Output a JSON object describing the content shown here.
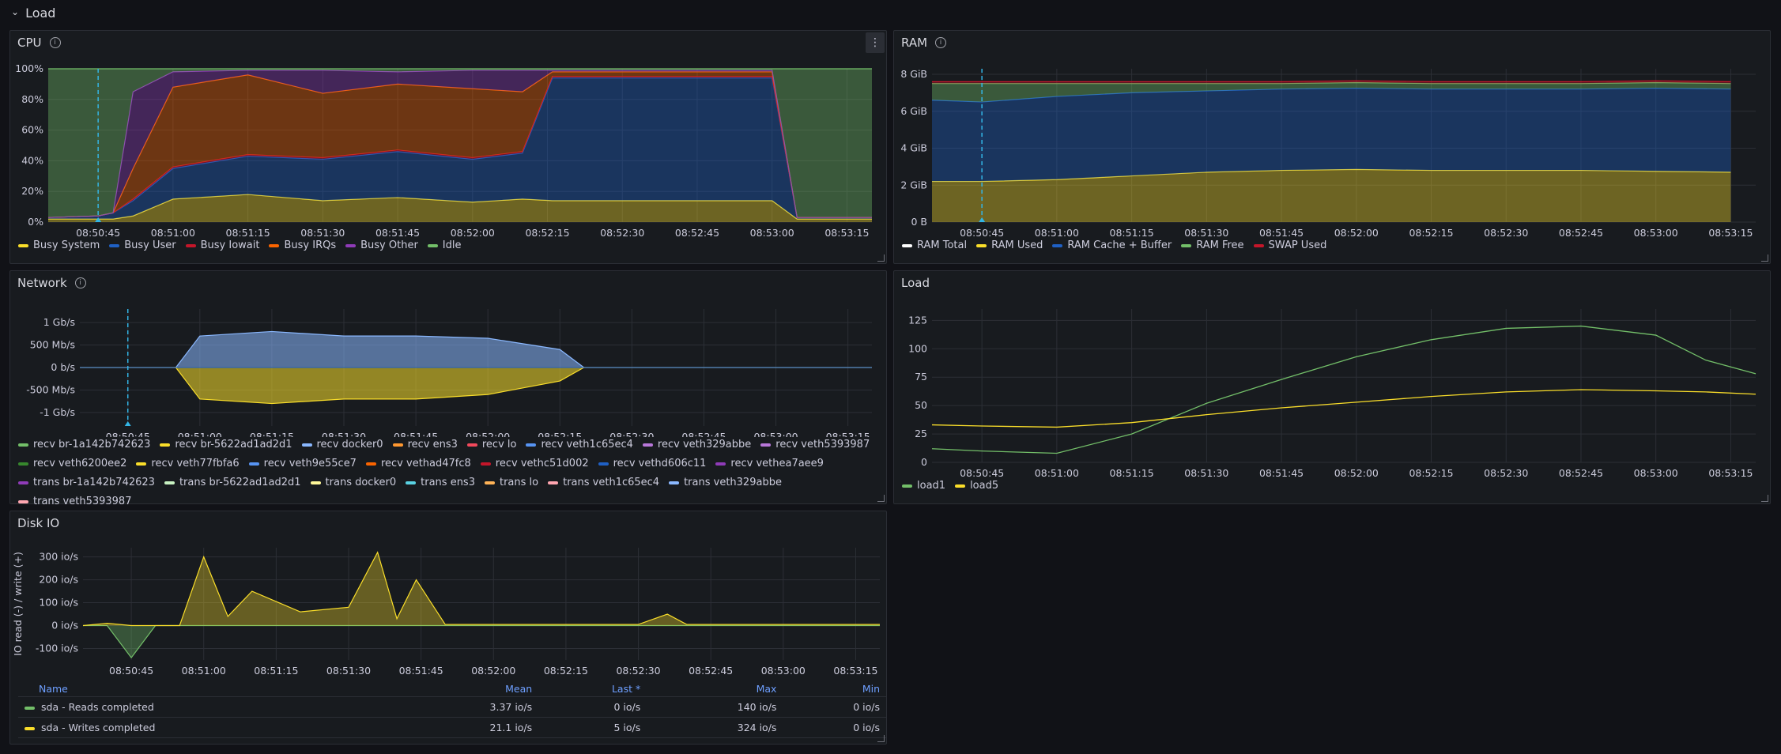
{
  "row": {
    "title": "Load"
  },
  "colors": {
    "green": "#73bf69",
    "yellow": "#fade2a",
    "blue": "#5794f2",
    "red": "#f2495c",
    "darkred": "#c4162a",
    "orange": "#ff9830",
    "darkorange": "#fa6400",
    "purple": "#b877d9",
    "darkpurple": "#8f3bb8",
    "lightblue": "#8ab8ff",
    "darkblue": "#1f60c4",
    "white": "#ffffff",
    "cyan": "#5ad2e3",
    "lightgreen": "#c8f2c2",
    "lightyellow": "#fff899",
    "pink": "#ffa6b0",
    "peach": "#ffb357",
    "lavender": "#ca95e5",
    "darkgreen": "#37872d"
  },
  "panels": {
    "cpu": {
      "title": "CPU",
      "yticks": [
        "100%",
        "80%",
        "60%",
        "40%",
        "20%",
        "0%"
      ],
      "xticks": [
        "08:50:45",
        "08:51:00",
        "08:51:15",
        "08:51:30",
        "08:51:45",
        "08:52:00",
        "08:52:15",
        "08:52:30",
        "08:52:45",
        "08:53:00",
        "08:53:15"
      ],
      "legend": [
        {
          "label": "Busy System",
          "color": "yellow"
        },
        {
          "label": "Busy User",
          "color": "darkblue"
        },
        {
          "label": "Busy Iowait",
          "color": "darkred"
        },
        {
          "label": "Busy IRQs",
          "color": "darkorange"
        },
        {
          "label": "Busy Other",
          "color": "darkpurple"
        },
        {
          "label": "Idle",
          "color": "green"
        }
      ]
    },
    "ram": {
      "title": "RAM",
      "yticks": [
        "8 GiB",
        "6 GiB",
        "4 GiB",
        "2 GiB",
        "0 B"
      ],
      "xticks": [
        "08:50:45",
        "08:51:00",
        "08:51:15",
        "08:51:30",
        "08:51:45",
        "08:52:00",
        "08:52:15",
        "08:52:30",
        "08:52:45",
        "08:53:00",
        "08:53:15"
      ],
      "legend": [
        {
          "label": "RAM Total",
          "color": "white"
        },
        {
          "label": "RAM Used",
          "color": "yellow"
        },
        {
          "label": "RAM Cache + Buffer",
          "color": "darkblue"
        },
        {
          "label": "RAM Free",
          "color": "green"
        },
        {
          "label": "SWAP Used",
          "color": "darkred"
        }
      ]
    },
    "network": {
      "title": "Network",
      "yticks": [
        "1 Gb/s",
        "500 Mb/s",
        "0 b/s",
        "-500 Mb/s",
        "-1 Gb/s"
      ],
      "xticks": [
        "08:50:45",
        "08:51:00",
        "08:51:15",
        "08:51:30",
        "08:51:45",
        "08:52:00",
        "08:52:15",
        "08:52:30",
        "08:52:45",
        "08:53:00",
        "08:53:15"
      ],
      "legend": [
        {
          "label": "recv br-1a142b742623",
          "color": "green"
        },
        {
          "label": "recv br-5622ad1ad2d1",
          "color": "yellow"
        },
        {
          "label": "recv docker0",
          "color": "lightblue"
        },
        {
          "label": "recv ens3",
          "color": "orange"
        },
        {
          "label": "recv lo",
          "color": "red"
        },
        {
          "label": "recv veth1c65ec4",
          "color": "blue"
        },
        {
          "label": "recv veth329abbe",
          "color": "purple"
        },
        {
          "label": "recv veth5393987",
          "color": "purple"
        },
        {
          "label": "recv veth6200ee2",
          "color": "darkgreen"
        },
        {
          "label": "recv veth77fbfa6",
          "color": "yellow"
        },
        {
          "label": "recv veth9e55ce7",
          "color": "blue"
        },
        {
          "label": "recv vethad47fc8",
          "color": "darkorange"
        },
        {
          "label": "recv vethc51d002",
          "color": "darkred"
        },
        {
          "label": "recv vethd606c11",
          "color": "darkblue"
        },
        {
          "label": "recv vethea7aee9",
          "color": "darkpurple"
        },
        {
          "label": "trans br-1a142b742623",
          "color": "darkpurple"
        },
        {
          "label": "trans br-5622ad1ad2d1",
          "color": "lightgreen"
        },
        {
          "label": "trans docker0",
          "color": "lightyellow"
        },
        {
          "label": "trans ens3",
          "color": "cyan"
        },
        {
          "label": "trans lo",
          "color": "peach"
        },
        {
          "label": "trans veth1c65ec4",
          "color": "pink"
        },
        {
          "label": "trans veth329abbe",
          "color": "lightblue"
        },
        {
          "label": "trans veth5393987",
          "color": "pink"
        }
      ]
    },
    "load": {
      "title": "Load",
      "yticks": [
        "125",
        "100",
        "75",
        "50",
        "25",
        "0"
      ],
      "xticks": [
        "08:50:45",
        "08:51:00",
        "08:51:15",
        "08:51:30",
        "08:51:45",
        "08:52:00",
        "08:52:15",
        "08:52:30",
        "08:52:45",
        "08:53:00",
        "08:53:15"
      ],
      "legend": [
        {
          "label": "load1",
          "color": "green"
        },
        {
          "label": "load5",
          "color": "yellow"
        }
      ]
    },
    "diskio": {
      "title": "Disk IO",
      "ylabel": "IO read (-) / write (+)",
      "yticks": [
        "300 io/s",
        "200 io/s",
        "100 io/s",
        "0 io/s",
        "-100 io/s"
      ],
      "xticks": [
        "08:50:45",
        "08:51:00",
        "08:51:15",
        "08:51:30",
        "08:51:45",
        "08:52:00",
        "08:52:15",
        "08:52:30",
        "08:52:45",
        "08:53:00",
        "08:53:15"
      ],
      "table": {
        "headers": {
          "name": "Name",
          "mean": "Mean",
          "last": "Last *",
          "max": "Max",
          "min": "Min"
        },
        "rows": [
          {
            "name": "sda - Reads completed",
            "color": "green",
            "mean": "3.37 io/s",
            "last": "0 io/s",
            "max": "140 io/s",
            "min": "0 io/s"
          },
          {
            "name": "sda - Writes completed",
            "color": "yellow",
            "mean": "21.1 io/s",
            "last": "5 io/s",
            "max": "324 io/s",
            "min": "0 io/s"
          }
        ]
      }
    }
  },
  "chart_data": [
    {
      "type": "area",
      "title": "CPU",
      "x": [
        "08:50:35",
        "08:50:45",
        "08:50:48",
        "08:50:52",
        "08:51:00",
        "08:51:15",
        "08:51:30",
        "08:51:45",
        "08:52:00",
        "08:52:10",
        "08:52:16",
        "08:52:30",
        "08:52:45",
        "08:53:00",
        "08:53:05",
        "08:53:20"
      ],
      "ylim": [
        0,
        100
      ],
      "series": [
        {
          "name": "Busy System",
          "values": [
            2,
            2,
            2,
            4,
            15,
            18,
            14,
            16,
            13,
            15,
            14,
            14,
            14,
            14,
            2,
            2
          ]
        },
        {
          "name": "Busy User",
          "values": [
            1,
            2,
            4,
            10,
            20,
            25,
            27,
            30,
            28,
            30,
            80,
            80,
            80,
            80,
            1,
            1
          ]
        },
        {
          "name": "Busy Iowait",
          "values": [
            0,
            0,
            0,
            1,
            1,
            1,
            1,
            1,
            1,
            1,
            1,
            1,
            1,
            1,
            0,
            0
          ]
        },
        {
          "name": "Busy IRQs",
          "values": [
            0,
            0,
            0,
            20,
            52,
            52,
            42,
            43,
            45,
            39,
            3,
            3,
            3,
            3,
            0,
            0
          ]
        },
        {
          "name": "Busy Other",
          "values": [
            0,
            0,
            0,
            50,
            10,
            3,
            15,
            8,
            12,
            14,
            1,
            1,
            1,
            1,
            0,
            0
          ]
        },
        {
          "name": "Idle",
          "values": [
            97,
            96,
            94,
            15,
            2,
            1,
            1,
            2,
            1,
            1,
            1,
            1,
            1,
            1,
            97,
            97
          ]
        }
      ]
    },
    {
      "type": "area",
      "title": "RAM",
      "x": [
        "08:50:35",
        "08:50:45",
        "08:51:00",
        "08:51:15",
        "08:51:30",
        "08:51:45",
        "08:52:00",
        "08:52:15",
        "08:52:30",
        "08:52:45",
        "08:53:00",
        "08:53:15"
      ],
      "ylim": [
        0,
        8
      ],
      "series": [
        {
          "name": "RAM Total",
          "values": [
            7.6,
            7.6,
            7.6,
            7.6,
            7.6,
            7.6,
            7.6,
            7.6,
            7.6,
            7.6,
            7.6,
            7.6
          ]
        },
        {
          "name": "RAM Used",
          "values": [
            2.2,
            2.2,
            2.3,
            2.5,
            2.7,
            2.8,
            2.85,
            2.8,
            2.8,
            2.8,
            2.75,
            2.7
          ]
        },
        {
          "name": "RAM Cache + Buffer",
          "values": [
            4.4,
            4.3,
            4.5,
            4.5,
            4.4,
            4.4,
            4.4,
            4.4,
            4.4,
            4.4,
            4.5,
            4.5
          ]
        },
        {
          "name": "RAM Free",
          "values": [
            0.9,
            1.0,
            0.7,
            0.5,
            0.4,
            0.3,
            0.3,
            0.3,
            0.3,
            0.3,
            0.3,
            0.3
          ]
        },
        {
          "name": "SWAP Used",
          "values": [
            0.1,
            0.1,
            0.1,
            0.1,
            0.1,
            0.1,
            0.1,
            0.1,
            0.1,
            0.1,
            0.1,
            0.1
          ]
        }
      ]
    },
    {
      "type": "area",
      "title": "Network",
      "x": [
        "08:50:35",
        "08:50:55",
        "08:51:00",
        "08:51:15",
        "08:51:30",
        "08:51:45",
        "08:52:00",
        "08:52:15",
        "08:52:20",
        "08:53:20"
      ],
      "ylim": [
        -1.2,
        1.2
      ],
      "series": [
        {
          "name": "recv docker0",
          "values": [
            0,
            0,
            0.7,
            0.8,
            0.7,
            0.7,
            0.65,
            0.4,
            0,
            0
          ]
        },
        {
          "name": "trans docker0",
          "values": [
            0,
            0,
            -0.7,
            -0.8,
            -0.7,
            -0.7,
            -0.6,
            -0.3,
            0,
            0
          ]
        }
      ]
    },
    {
      "type": "line",
      "title": "Load",
      "x": [
        "08:50:35",
        "08:50:45",
        "08:51:00",
        "08:51:15",
        "08:51:30",
        "08:51:45",
        "08:52:00",
        "08:52:15",
        "08:52:30",
        "08:52:45",
        "08:53:00",
        "08:53:10",
        "08:53:20"
      ],
      "ylim": [
        0,
        135
      ],
      "series": [
        {
          "name": "load1",
          "values": [
            12,
            10,
            8,
            25,
            52,
            73,
            93,
            108,
            118,
            120,
            112,
            90,
            78
          ]
        },
        {
          "name": "load5",
          "values": [
            33,
            32,
            31,
            35,
            42,
            48,
            53,
            58,
            62,
            64,
            63,
            62,
            60
          ]
        }
      ]
    },
    {
      "type": "area",
      "title": "Disk IO",
      "x": [
        "08:50:35",
        "08:50:40",
        "08:50:45",
        "08:50:50",
        "08:50:55",
        "08:51:00",
        "08:51:05",
        "08:51:10",
        "08:51:20",
        "08:51:30",
        "08:51:36",
        "08:51:40",
        "08:51:44",
        "08:51:50",
        "08:52:00",
        "08:52:30",
        "08:52:36",
        "08:52:40",
        "08:53:20"
      ],
      "ylim": [
        -150,
        350
      ],
      "series": [
        {
          "name": "sda - Reads completed",
          "values": [
            0,
            0,
            -140,
            0,
            0,
            0,
            0,
            0,
            0,
            0,
            0,
            0,
            0,
            0,
            0,
            0,
            0,
            0,
            0
          ]
        },
        {
          "name": "sda - Writes completed",
          "values": [
            0,
            10,
            0,
            0,
            0,
            300,
            40,
            150,
            60,
            80,
            320,
            30,
            200,
            5,
            5,
            5,
            50,
            5,
            5
          ]
        }
      ]
    }
  ]
}
